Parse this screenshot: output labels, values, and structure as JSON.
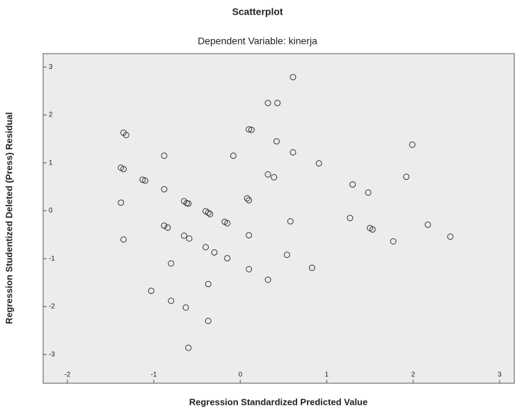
{
  "chart_data": {
    "type": "scatter",
    "title": "Scatterplot",
    "subtitle": "Dependent Variable: kinerja",
    "x_label": "Regression Standardized Predicted Value",
    "y_label": "Regression Studentized Deleted (Press) Residual",
    "color": "#333333",
    "x": [
      0.61,
      0.32,
      0.43,
      -1.35,
      -1.32,
      0.1,
      0.13,
      0.42,
      1.99,
      0.61,
      -0.88,
      -0.08,
      0.91,
      -1.38,
      -1.35,
      0.32,
      0.39,
      1.92,
      -1.13,
      -1.1,
      1.3,
      1.48,
      -0.88,
      0.08,
      0.1,
      -1.38,
      -0.65,
      -0.62,
      -0.6,
      -0.4,
      -0.37,
      -0.35,
      -0.18,
      -0.15,
      1.27,
      0.58,
      -0.88,
      -0.84,
      2.17,
      1.5,
      1.53,
      0.1,
      -1.35,
      -0.65,
      -0.59,
      2.43,
      1.77,
      -0.4,
      -0.3,
      0.54,
      -0.15,
      -0.8,
      0.1,
      0.83,
      0.32,
      -0.37,
      -1.03,
      -0.8,
      -0.63,
      -0.37,
      -0.6
    ],
    "values": [
      2.79,
      2.25,
      2.25,
      1.63,
      1.58,
      1.7,
      1.69,
      1.45,
      1.38,
      1.22,
      1.15,
      1.15,
      0.99,
      0.9,
      0.87,
      0.76,
      0.7,
      0.71,
      0.65,
      0.63,
      0.55,
      0.38,
      0.45,
      0.26,
      0.22,
      0.17,
      0.2,
      0.16,
      0.15,
      -0.01,
      -0.04,
      -0.07,
      -0.23,
      -0.26,
      -0.15,
      -0.22,
      -0.31,
      -0.35,
      -0.29,
      -0.36,
      -0.39,
      -0.51,
      -0.6,
      -0.52,
      -0.58,
      -0.54,
      -0.64,
      -0.76,
      -0.87,
      -0.92,
      -0.99,
      -1.1,
      -1.22,
      -1.19,
      -1.44,
      -1.53,
      -1.67,
      -1.88,
      -2.02,
      -2.3,
      -2.86
    ],
    "xlim": [
      -2.28,
      3.17
    ],
    "xticks": [
      -2,
      -1,
      0,
      1,
      2,
      3
    ],
    "ylim": [
      -3.6,
      3.28
    ],
    "yticks": [
      -3,
      -2,
      -1,
      0,
      1,
      2,
      3
    ]
  }
}
